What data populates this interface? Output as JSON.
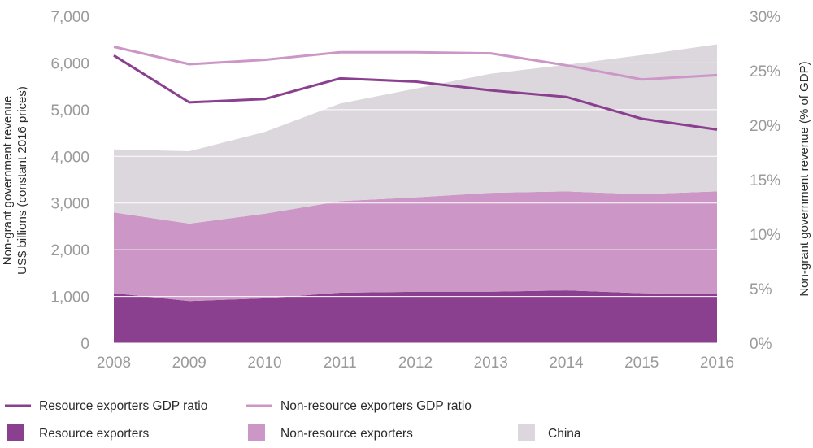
{
  "chart_data": {
    "type": "area",
    "x": [
      "2008",
      "2009",
      "2010",
      "2011",
      "2012",
      "2013",
      "2014",
      "2015",
      "2016"
    ],
    "left_axis": {
      "label_lines": [
        "Non-grant government revenue",
        "US$ billions (constant 2016 prices)"
      ],
      "ylim": [
        0,
        7000
      ],
      "ticks": [
        0,
        1000,
        2000,
        3000,
        4000,
        5000,
        6000,
        7000
      ],
      "tick_labels": [
        "0",
        "1,000",
        "2,000",
        "3,000",
        "4,000",
        "5,000",
        "6,000",
        "7,000"
      ]
    },
    "right_axis": {
      "label": "Non-grant government revenue (% of GDP)",
      "ylim": [
        0,
        30
      ],
      "ticks": [
        0,
        5,
        10,
        15,
        20,
        25,
        30
      ],
      "tick_labels": [
        "0%",
        "5%",
        "10%",
        "15%",
        "20%",
        "25%",
        "30%"
      ]
    },
    "grid": "horizontal",
    "areas": [
      {
        "name": "Resource exporters",
        "color": "#8a3f8f",
        "values": [
          1070,
          900,
          960,
          1080,
          1100,
          1100,
          1130,
          1070,
          1050
        ]
      },
      {
        "name": "Non-resource exporters",
        "color": "#cc96c6",
        "values": [
          1730,
          1660,
          1810,
          1960,
          2020,
          2120,
          2120,
          2120,
          2200
        ]
      },
      {
        "name": "China",
        "color": "#dcd6dd",
        "values": [
          1350,
          1550,
          1750,
          2090,
          2330,
          2550,
          2710,
          2980,
          3150
        ]
      }
    ],
    "lines": [
      {
        "name": "Resource exporters GDP ratio",
        "color": "#8a3f8f",
        "axis": "right",
        "values": [
          26.4,
          22.1,
          22.4,
          24.3,
          24.0,
          23.2,
          22.6,
          20.6,
          19.6
        ]
      },
      {
        "name": "Non-resource exporters GDP ratio",
        "color": "#cc96c6",
        "axis": "right",
        "values": [
          27.2,
          25.6,
          26.0,
          26.7,
          26.7,
          26.6,
          25.5,
          24.2,
          24.6
        ]
      }
    ],
    "legend_position": "bottom"
  }
}
